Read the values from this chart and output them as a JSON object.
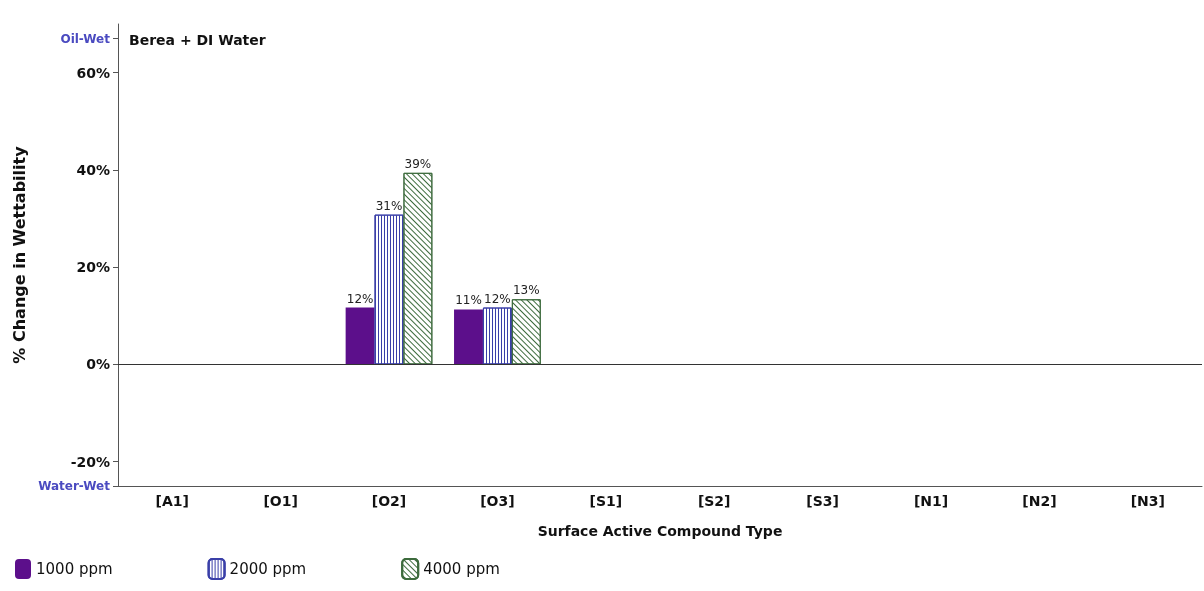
{
  "chart_data": {
    "type": "bar",
    "title": "Berea + DI Water",
    "xlabel": "Surface Active Compound Type",
    "ylabel": "% Change in Wettability",
    "categories": [
      "[A1]",
      "[O1]",
      "[O2]",
      "[O3]",
      "[S1]",
      "[S2]",
      "[S3]",
      "[N1]",
      "[N2]",
      "[N3]"
    ],
    "series": [
      {
        "name": "1000 ppm",
        "color": "#5c0f8b",
        "values": [
          null,
          null,
          11.7,
          11.3,
          null,
          null,
          null,
          null,
          null,
          null
        ],
        "value_labels": [
          null,
          null,
          "12%",
          "11%",
          null,
          null,
          null,
          null,
          null,
          null
        ]
      },
      {
        "name": "2000 ppm",
        "color": "#3a3fa8",
        "values": [
          null,
          null,
          30.8,
          11.7,
          null,
          null,
          null,
          null,
          null,
          null
        ],
        "value_labels": [
          null,
          null,
          "31%",
          "12%",
          null,
          null,
          null,
          null,
          null,
          null
        ]
      },
      {
        "name": "4000 ppm",
        "color": "#3d6b3d",
        "values": [
          null,
          null,
          39.4,
          13.4,
          null,
          null,
          null,
          null,
          null,
          null
        ],
        "value_labels": [
          null,
          null,
          "39%",
          "13%",
          null,
          null,
          null,
          null,
          null,
          null
        ]
      }
    ],
    "ylim": [
      -25,
      70
    ],
    "yticks": [
      {
        "value": -25,
        "label": "Water-Wet"
      },
      {
        "value": -20,
        "label": "-20%"
      },
      {
        "value": 0,
        "label": "0%"
      },
      {
        "value": 20,
        "label": "20%"
      },
      {
        "value": 40,
        "label": "40%"
      },
      {
        "value": 60,
        "label": "60%"
      },
      {
        "value": 67,
        "label": "Oil-Wet"
      }
    ],
    "ref_lines": [
      {
        "axis": "y",
        "value": 0,
        "color": "#333333"
      }
    ],
    "grid": false,
    "legend": "bottom left"
  }
}
